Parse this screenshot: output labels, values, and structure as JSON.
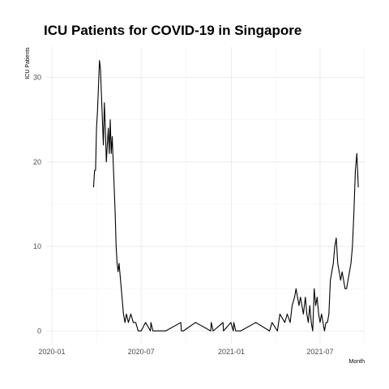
{
  "chart_data": {
    "type": "line",
    "title": "ICU Patients for COVID-19 in Singapore",
    "xlabel": "Month",
    "ylabel": "ICU Patients",
    "x_tick_labels": [
      "2020-01",
      "2020-07",
      "2021-01",
      "2021-07"
    ],
    "x_tick_dates": [
      "2020-01-01",
      "2020-07-01",
      "2021-01-01",
      "2021-07-01"
    ],
    "y_tick_labels": [
      "0",
      "10",
      "20",
      "30"
    ],
    "y_ticks": [
      0,
      10,
      20,
      30
    ],
    "xlim": [
      "2019-12-22",
      "2021-09-30"
    ],
    "ylim": [
      -1.5,
      33.6
    ],
    "grid": true,
    "legend": "none",
    "line_color": "#000000",
    "series": [
      {
        "x": [
          "2020-03-26",
          "2020-03-28",
          "2020-03-30",
          "2020-04-01",
          "2020-04-03",
          "2020-04-05",
          "2020-04-07",
          "2020-04-09",
          "2020-04-11",
          "2020-04-13",
          "2020-04-15",
          "2020-04-17",
          "2020-04-19",
          "2020-04-21",
          "2020-04-23",
          "2020-04-25",
          "2020-04-27",
          "2020-04-29",
          "2020-05-01",
          "2020-05-03",
          "2020-05-05",
          "2020-05-07",
          "2020-05-09",
          "2020-05-11",
          "2020-05-13",
          "2020-05-15",
          "2020-05-17",
          "2020-05-20",
          "2020-05-23",
          "2020-05-26",
          "2020-05-29",
          "2020-06-01",
          "2020-06-05",
          "2020-06-10",
          "2020-06-15",
          "2020-06-20",
          "2020-06-25",
          "2020-07-01",
          "2020-07-10",
          "2020-07-20",
          "2020-07-21",
          "2020-07-25",
          "2020-08-20",
          "2020-09-20",
          "2020-09-21",
          "2020-09-25",
          "2020-10-20",
          "2020-11-20",
          "2020-11-21",
          "2020-11-25",
          "2020-12-15",
          "2020-12-16",
          "2020-12-31",
          "2021-01-05",
          "2021-01-06",
          "2021-01-10",
          "2021-01-20",
          "2021-02-20",
          "2021-03-20",
          "2021-03-25",
          "2021-04-05",
          "2021-04-10",
          "2021-04-20",
          "2021-04-25",
          "2021-05-01",
          "2021-05-05",
          "2021-05-10",
          "2021-05-13",
          "2021-05-16",
          "2021-05-19",
          "2021-05-22",
          "2021-05-25",
          "2021-05-28",
          "2021-06-01",
          "2021-06-04",
          "2021-06-07",
          "2021-06-10",
          "2021-06-13",
          "2021-06-16",
          "2021-06-19",
          "2021-06-22",
          "2021-06-25",
          "2021-06-28",
          "2021-07-01",
          "2021-07-04",
          "2021-07-07",
          "2021-07-10",
          "2021-07-13",
          "2021-07-16",
          "2021-07-19",
          "2021-07-22",
          "2021-07-25",
          "2021-07-28",
          "2021-07-31",
          "2021-08-03",
          "2021-08-06",
          "2021-08-09",
          "2021-08-12",
          "2021-08-15",
          "2021-08-18",
          "2021-08-21",
          "2021-08-24",
          "2021-08-27",
          "2021-08-30",
          "2021-09-02",
          "2021-09-05",
          "2021-09-08",
          "2021-09-11",
          "2021-09-14",
          "2021-09-17"
        ],
        "values": [
          17,
          19,
          19,
          24,
          26,
          29,
          32,
          31,
          28,
          25,
          22,
          27,
          24,
          20,
          22,
          24,
          21,
          25,
          21,
          23,
          20,
          17,
          14,
          10,
          8,
          7,
          8,
          6,
          4,
          2,
          1,
          2,
          1,
          2,
          1,
          1,
          0,
          0,
          1,
          0,
          1,
          0,
          0,
          1,
          0,
          0,
          1,
          0,
          1,
          0,
          1,
          0,
          1,
          0,
          1,
          0,
          0,
          1,
          0,
          1,
          0,
          2,
          1,
          2,
          1,
          3,
          4,
          5,
          4,
          3,
          4,
          3,
          2,
          4,
          2,
          1,
          3,
          1,
          0,
          5,
          3,
          4,
          2,
          1,
          2,
          1,
          0,
          1,
          1,
          2,
          6,
          7,
          8,
          10,
          11,
          8,
          7,
          6,
          7,
          6,
          5,
          5,
          6,
          7,
          8,
          10,
          14,
          19,
          21,
          17
        ]
      }
    ]
  }
}
